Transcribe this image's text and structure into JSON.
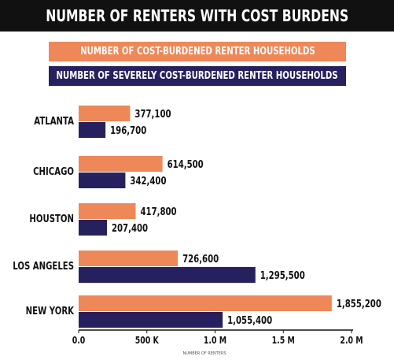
{
  "colors": {
    "cost_burdened": "#ee8858",
    "severely_cost_burdened": "#26215e",
    "title_bg": "#111111"
  },
  "chart_data": {
    "type": "bar",
    "orientation": "horizontal",
    "title": "NUMBER OF RENTERS WITH COST BURDENS",
    "xlabel": "NUMBER OF RENTERS",
    "categories": [
      "ATLANTA",
      "CHICAGO",
      "HOUSTON",
      "LOS ANGELES",
      "NEW YORK"
    ],
    "series": [
      {
        "name": "NUMBER OF COST-BURDENED RENTER HOUSEHOLDS",
        "values": [
          377100,
          614500,
          417800,
          726600,
          1855200
        ],
        "labels": [
          "377,100",
          "614,500",
          "417,800",
          "726,600",
          "1,855,200"
        ]
      },
      {
        "name": "NUMBER OF SEVERELY COST-BURDENED RENTER HOUSEHOLDS",
        "values": [
          196700,
          342400,
          207400,
          1295500,
          1055400
        ],
        "labels": [
          "196,700",
          "342,400",
          "207,400",
          "1,295,500",
          "1,055,400"
        ]
      }
    ],
    "xlim": [
      0,
      2000000
    ],
    "xticks": [
      0,
      500000,
      1000000,
      1500000,
      2000000
    ],
    "xtick_labels": [
      "0.0",
      "500 K",
      "1.0 M",
      "1.5 M",
      "2.0 M"
    ],
    "legend_position": "top",
    "grid": false
  }
}
